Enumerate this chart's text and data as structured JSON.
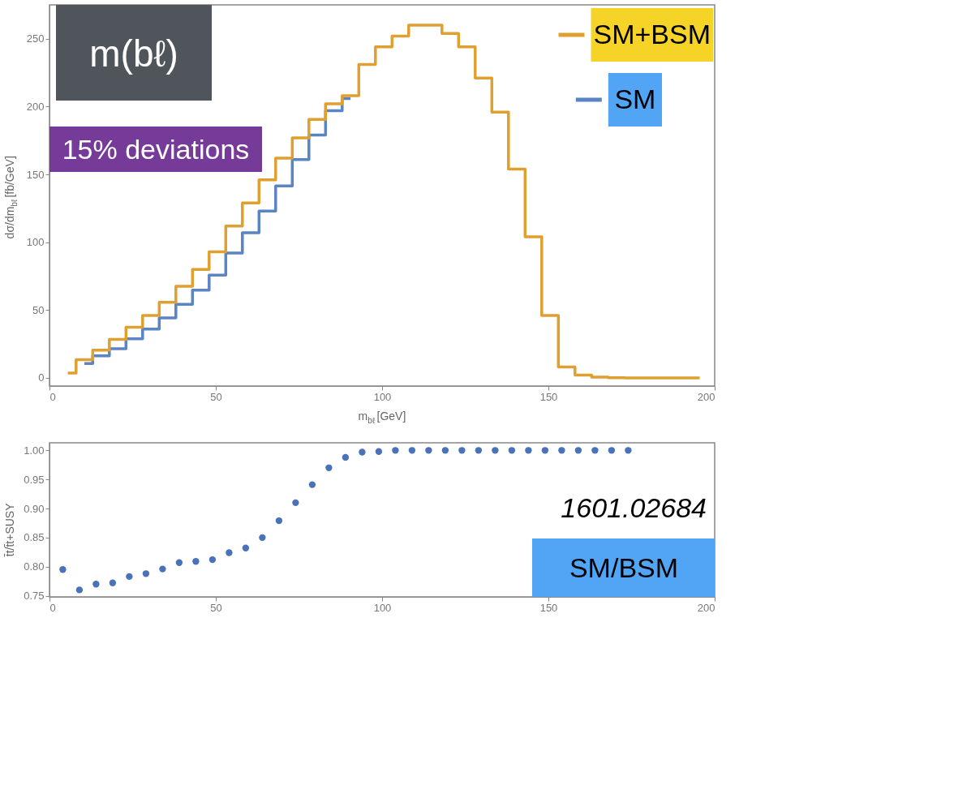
{
  "chart_data": [
    {
      "type": "step",
      "xlabel": "m$_{bℓ}$ [GeV]",
      "ylabel": "dσ/dm$_{bℓ}$ [fb/GeV]",
      "x": [
        5.5,
        10.5,
        15.5,
        20.5,
        25.5,
        30.5,
        35.5,
        40.5,
        45.5,
        50.5,
        55.5,
        60.5,
        65.5,
        70.5,
        75.5,
        80.5,
        85.5,
        90.5,
        95.5,
        100.5,
        105.5,
        110.5,
        115.5,
        120.5,
        125.5,
        130.5,
        135.5,
        140.5,
        145.5,
        150.5,
        155.5,
        160.5,
        165.5,
        170.5,
        175.5,
        180.5,
        185.5,
        190.5,
        195.5
      ],
      "series": [
        {
          "name": "SM+BSM",
          "color": "#e0a030",
          "values": [
            3.5,
            13.4,
            20.5,
            28.4,
            37.4,
            46,
            55.7,
            67.6,
            80,
            93,
            112,
            129,
            146,
            162,
            177,
            190.5,
            202,
            208,
            231,
            244,
            252,
            260,
            260,
            254,
            244,
            221,
            196,
            154,
            104,
            46,
            8,
            2,
            0.6,
            0.2,
            0,
            0,
            0,
            0,
            0
          ]
        },
        {
          "name": "SM",
          "color": "#5b84c4",
          "values": [
            null,
            10.6,
            16.3,
            21.5,
            28.8,
            36,
            44.2,
            54.3,
            64.7,
            75.8,
            92,
            107,
            123,
            141.5,
            161,
            179,
            197,
            206,
            null,
            null,
            null,
            null,
            null,
            null,
            null,
            null,
            null,
            null,
            null,
            null,
            null,
            null,
            null,
            null,
            null,
            null,
            null,
            null,
            null
          ]
        }
      ],
      "xlim": [
        0,
        200
      ],
      "xticks": [
        0,
        50,
        100,
        150,
        200
      ],
      "ylim": [
        -6,
        275
      ],
      "yticks": [
        0,
        50,
        100,
        150,
        200,
        250
      ],
      "legend": "top right",
      "grid": false,
      "line_style": "solid",
      "annotations": [
        "m(bℓ)",
        "15% deviations"
      ]
    },
    {
      "type": "scatter",
      "ylabel": "t̄t/t̄t+SUSY",
      "x": [
        4,
        9,
        14,
        19,
        24,
        29,
        34,
        39,
        44,
        49,
        54,
        59,
        64,
        69,
        74,
        79,
        84,
        89,
        94,
        99,
        104,
        109,
        114,
        119,
        124,
        129,
        134,
        139,
        144,
        149,
        154,
        159,
        164,
        169,
        174
      ],
      "series": [
        {
          "color": "#4a72b8",
          "values": [
            0.795,
            0.76,
            0.77,
            0.772,
            0.783,
            0.788,
            0.796,
            0.807,
            0.809,
            0.812,
            0.824,
            0.832,
            0.85,
            0.879,
            0.91,
            0.941,
            0.97,
            0.988,
            0.997,
            0.998,
            1.0,
            1.0,
            1.0,
            1.0,
            1.0,
            1.0,
            1.0,
            1.0,
            1.0,
            1.0,
            1.0,
            1.0,
            1.0,
            1.0,
            1.0
          ]
        }
      ],
      "xlim": [
        0,
        200
      ],
      "xticks": [
        0,
        50,
        100,
        150,
        200
      ],
      "ylim": [
        0.748,
        1.013
      ],
      "yticks": [
        0.75,
        {
          "value": 0.8,
          "label": "0.80"
        },
        0.85,
        {
          "value": 0.9,
          "label": "0.90"
        },
        0.95,
        {
          "value": 1.0,
          "label": "1.00"
        }
      ],
      "grid": false,
      "marker": "circle",
      "annotations": [
        "1601.02684",
        "SM/BSM"
      ]
    }
  ]
}
